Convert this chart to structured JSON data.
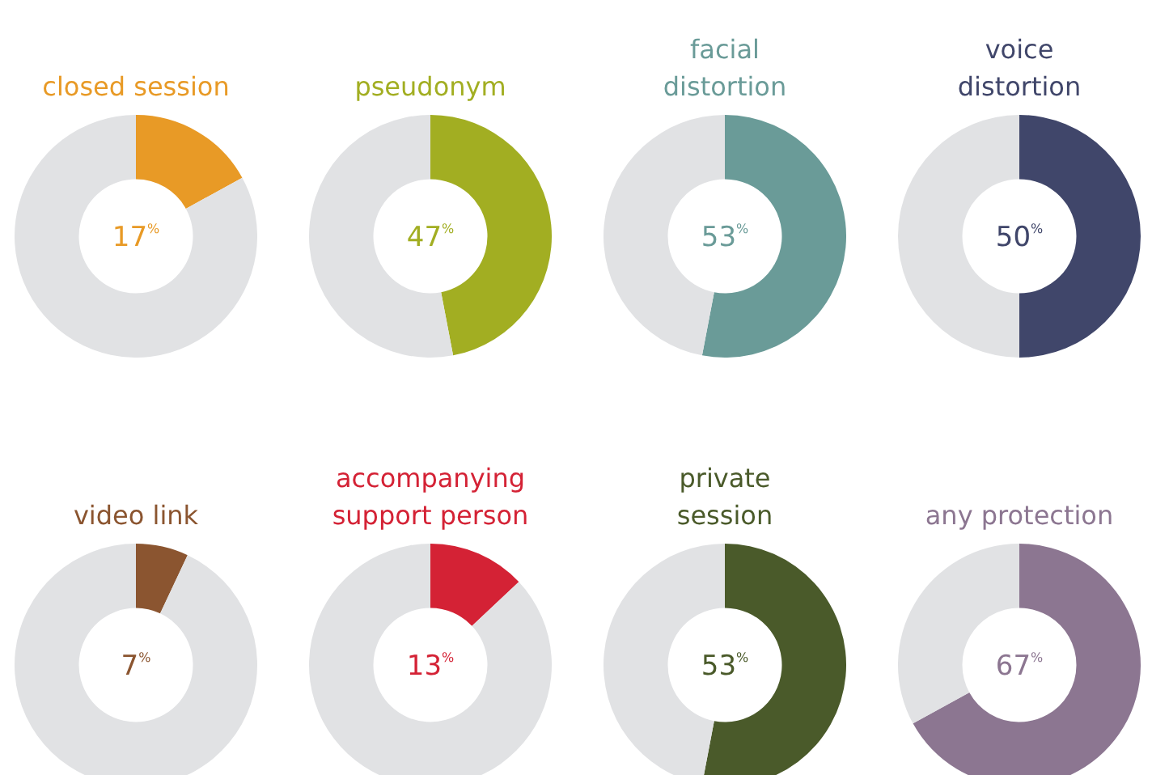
{
  "chart_data": [
    {
      "type": "donut",
      "title": "closed session",
      "categories": [
        null,
        null
      ],
      "values": [
        17,
        83
      ],
      "colors": [
        "#e89a26",
        "#e1e2e4"
      ],
      "annotations": [
        "17$^{%}$"
      ]
    },
    {
      "type": "donut",
      "title": "pseudonym",
      "categories": [
        null,
        null
      ],
      "values": [
        47,
        53
      ],
      "colors": [
        "#a2ae22",
        "#e1e2e4"
      ],
      "annotations": [
        "47$^{%}$"
      ]
    },
    {
      "type": "donut",
      "title": "facial\ndistortion",
      "categories": [
        null,
        null
      ],
      "values": [
        53,
        47
      ],
      "colors": [
        "#6a9b98",
        "#e1e2e4"
      ],
      "annotations": [
        "53$^{%}$"
      ]
    },
    {
      "type": "donut",
      "title": "voice\ndistortion",
      "categories": [
        null,
        null
      ],
      "values": [
        50,
        50
      ],
      "colors": [
        "#40466a",
        "#e1e2e4"
      ],
      "annotations": [
        "50$^{%}$"
      ]
    },
    {
      "type": "donut",
      "title": "video link",
      "categories": [
        null,
        null
      ],
      "values": [
        7,
        93
      ],
      "colors": [
        "#8b5530",
        "#e1e2e4"
      ],
      "annotations": [
        "7$^{%}$"
      ]
    },
    {
      "type": "donut",
      "title": "accompanying\nsupport person",
      "categories": [
        null,
        null
      ],
      "values": [
        13,
        87
      ],
      "colors": [
        "#d42235",
        "#e1e2e4"
      ],
      "annotations": [
        "13$^{%}$"
      ]
    },
    {
      "type": "donut",
      "title": "private\nsession",
      "categories": [
        null,
        null
      ],
      "values": [
        53,
        47
      ],
      "colors": [
        "#4a5a2a",
        "#e1e2e4"
      ],
      "annotations": [
        "53$^{%}$"
      ]
    },
    {
      "type": "donut",
      "title": "any protection",
      "categories": [
        null,
        null
      ],
      "values": [
        67,
        33
      ],
      "colors": [
        "#8c7691",
        "#e1e2e4"
      ],
      "annotations": [
        "67$^{%}$"
      ]
    }
  ]
}
